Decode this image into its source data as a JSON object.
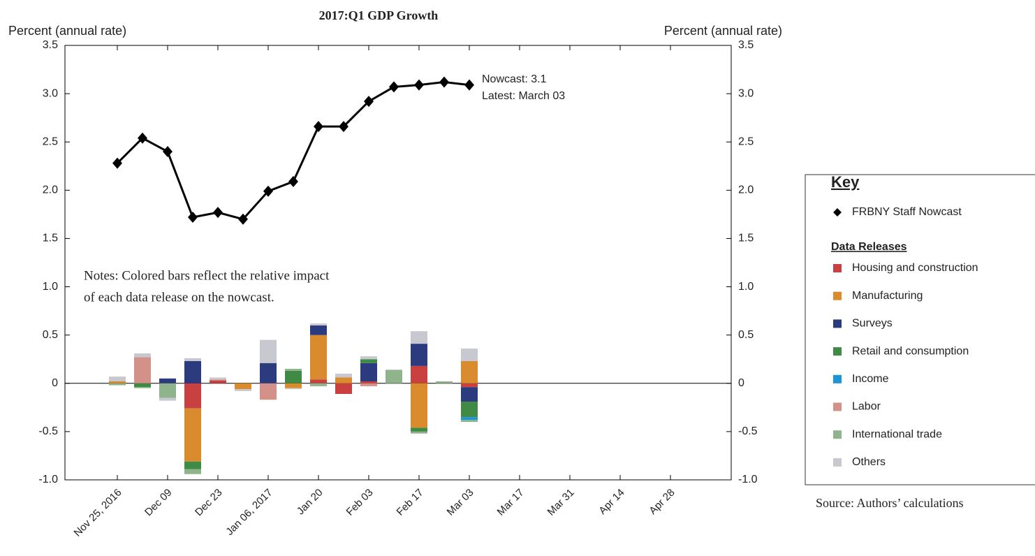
{
  "chart_data": {
    "type": "bar",
    "stacked": true,
    "title": "2017:Q1 GDP Growth",
    "y_label": "Percent (annual rate)",
    "y2_label": "Percent (annual rate)",
    "categories": [
      "Nov 25, 2016",
      null,
      "Dec 09",
      null,
      "Dec 23",
      null,
      "Jan 06, 2017",
      null,
      "Jan 20",
      null,
      "Feb 03",
      null,
      "Feb 17",
      null,
      "Mar 03",
      null,
      "Mar 17",
      null,
      "Mar 31",
      null,
      "Apr 14",
      null,
      "Apr 28",
      null
    ],
    "ylim": [
      -1,
      3.5
    ],
    "yticks": [
      {
        "value": -1,
        "label": "-1.0"
      },
      -0.5,
      0,
      0.5,
      {
        "value": 1,
        "label": "1.0"
      },
      1.5,
      {
        "value": 2,
        "label": "2.0"
      },
      2.5,
      {
        "value": 3,
        "label": "3.0"
      },
      3.5
    ],
    "y2lim": [
      -1,
      3.5
    ],
    "y2ticks": [
      {
        "value": -1,
        "label": "-1.0"
      },
      -0.5,
      0,
      0.5,
      {
        "value": 1,
        "label": "1.0"
      },
      1.5,
      {
        "value": 2,
        "label": "2.0"
      },
      2.5,
      {
        "value": 3,
        "label": "3.0"
      },
      3.5
    ],
    "series": [
      {
        "name": "Housing and construction",
        "color": "#c8403f",
        "values": [
          0,
          0,
          0,
          -0.26,
          0.03,
          0,
          0,
          0,
          0.04,
          -0.11,
          0.02,
          0,
          0.18,
          0,
          -0.04,
          0,
          0,
          0,
          0,
          0,
          0,
          0,
          0,
          0
        ]
      },
      {
        "name": "Manufacturing",
        "color": "#d98b2e",
        "values": [
          0.02,
          0,
          0,
          -0.55,
          0,
          -0.06,
          0,
          -0.05,
          0.46,
          0.06,
          0,
          0,
          -0.46,
          0,
          0.23,
          0,
          0,
          0,
          0,
          0,
          0,
          0,
          0,
          0
        ]
      },
      {
        "name": "Surveys",
        "color": "#2c3a7e",
        "values": [
          0,
          0,
          0.05,
          0.23,
          0,
          0,
          0.21,
          0,
          0.1,
          0,
          0.19,
          0,
          0.23,
          0,
          -0.15,
          0,
          0,
          0,
          0,
          0,
          0,
          0,
          0,
          0
        ]
      },
      {
        "name": "Retail and consumption",
        "color": "#3f8a44",
        "values": [
          0,
          -0.04,
          0,
          -0.08,
          0,
          0,
          0,
          0.13,
          0,
          0,
          0.04,
          0,
          -0.04,
          0,
          -0.16,
          0,
          0,
          0,
          0,
          0,
          0,
          0,
          0,
          0
        ]
      },
      {
        "name": "Income",
        "color": "#1b95d6",
        "values": [
          0,
          0,
          0,
          0,
          0,
          0,
          0,
          0,
          0,
          0,
          0,
          0,
          0,
          0,
          -0.03,
          0,
          0,
          0,
          0,
          0,
          0,
          0,
          0,
          0
        ]
      },
      {
        "name": "Labor",
        "color": "#d4918a",
        "values": [
          0,
          0.27,
          0,
          0,
          0.01,
          0,
          -0.17,
          0,
          0,
          0,
          -0.03,
          0,
          0,
          0,
          0,
          0,
          0,
          0,
          0,
          0,
          0,
          0,
          0,
          0
        ]
      },
      {
        "name": "International trade",
        "color": "#8fb38a",
        "values": [
          -0.02,
          -0.01,
          -0.15,
          -0.05,
          0,
          0,
          0,
          0.02,
          -0.03,
          0,
          0,
          0.14,
          -0.02,
          0.02,
          -0.02,
          0,
          0,
          0,
          0,
          0,
          0,
          0,
          0,
          0
        ]
      },
      {
        "name": "Others",
        "color": "#c8c8d0",
        "values": [
          0.05,
          0.04,
          -0.03,
          0.03,
          0.02,
          -0.02,
          0.24,
          -0.01,
          0.02,
          0.04,
          0.03,
          0,
          0.13,
          0,
          0.13,
          0,
          0,
          0,
          0,
          0,
          0,
          0,
          0,
          0
        ]
      }
    ],
    "line": {
      "name": "FRBNY Staff Nowcast",
      "color": "#000000",
      "values": [
        2.28,
        2.54,
        2.4,
        1.72,
        1.77,
        1.7,
        1.99,
        2.09,
        2.66,
        2.66,
        2.92,
        3.07,
        3.09,
        3.12,
        3.09,
        null,
        null,
        null,
        null,
        null,
        null,
        null,
        null,
        null
      ]
    },
    "annotations": [
      "Nowcast:  3.1",
      "Latest: March 03"
    ],
    "notes": [
      "Notes: Colored bars reflect the relative impact",
      "of each data release on the nowcast."
    ],
    "legend_title": "Key",
    "legend_subtitle": "Data Releases",
    "source": "Source: Authors’ calculations"
  }
}
